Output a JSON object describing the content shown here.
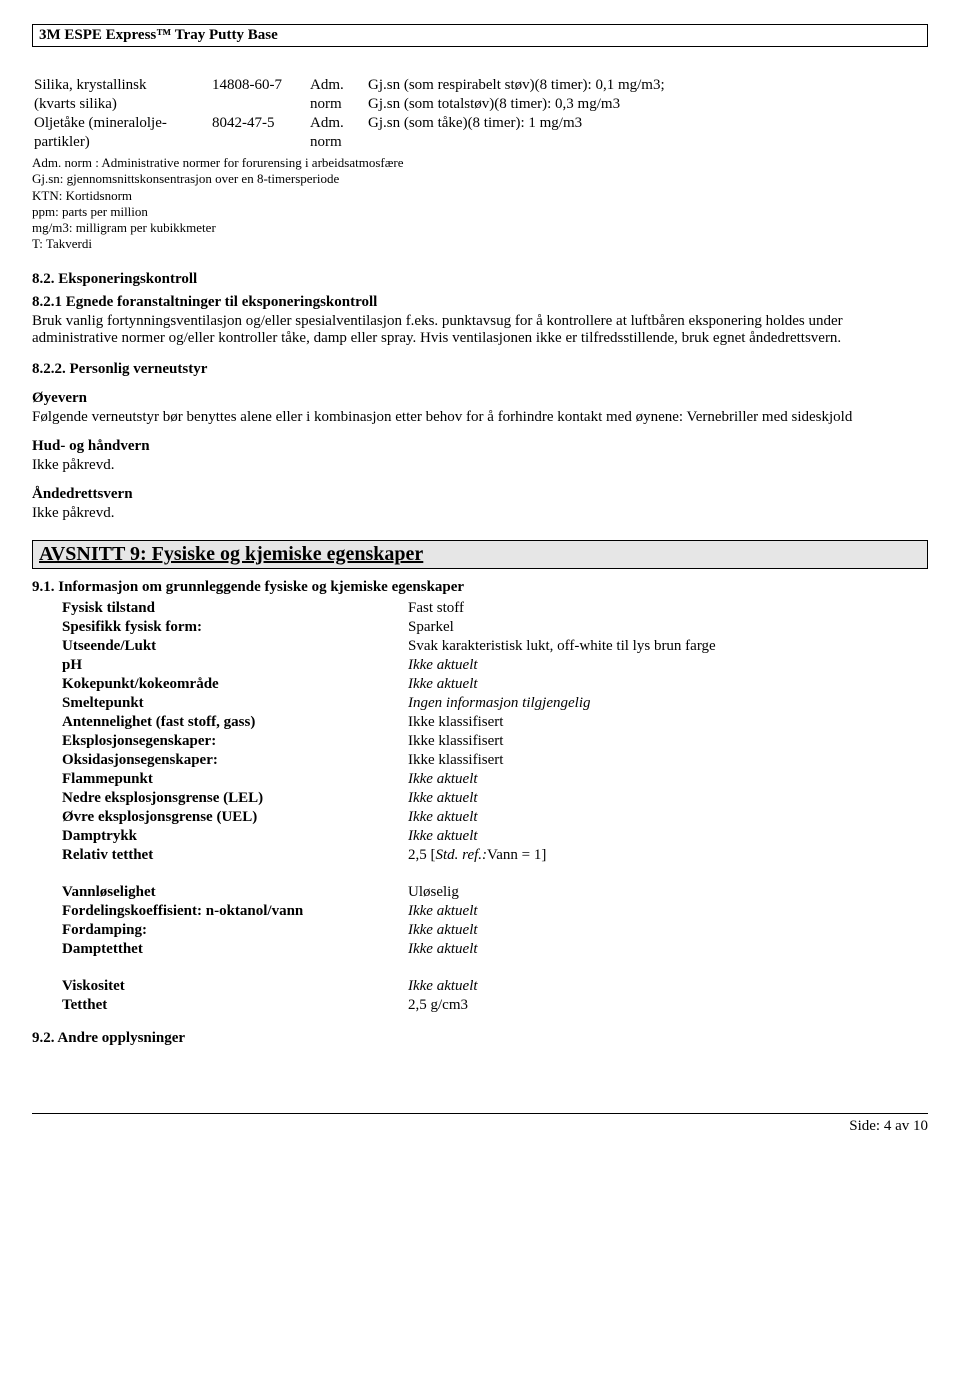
{
  "header": {
    "title": "3M ESPE Express™ Tray Putty Base"
  },
  "exposure_rows": [
    {
      "name_l1": "Silika, krystallinsk",
      "name_l2": "(kvarts silika)",
      "cas": "14808-60-7",
      "norm_l1": "Adm.",
      "norm_l2": "norm",
      "val_l1": "Gj.sn (som respirabelt støv)(8 timer): 0,1 mg/m3;",
      "val_l2": "Gj.sn (som totalstøv)(8 timer): 0,3 mg/m3"
    },
    {
      "name_l1": "Oljetåke (mineralolje-",
      "name_l2": "partikler)",
      "cas": "8042-47-5",
      "norm_l1": "Adm.",
      "norm_l2": "norm",
      "val_l1": "Gj.sn (som tåke)(8 timer): 1 mg/m3",
      "val_l2": ""
    }
  ],
  "defs": [
    "Adm. norm : Administrative normer for forurensing i arbeidsatmosfære",
    "Gj.sn: gjennomsnittskonsentrasjon over en 8-timersperiode",
    "KTN: Kortidsnorm",
    "ppm: parts per million",
    "mg/m3: milligram per kubikkmeter",
    "T: Takverdi"
  ],
  "s82": {
    "title": "8.2. Eksponeringskontroll",
    "s821_title": "8.2.1 Egnede foranstaltninger til eksponeringskontroll",
    "s821_body": "Bruk vanlig fortynningsventilasjon og/eller spesialventilasjon f.eks. punktavsug for å kontrollere at luftbåren eksponering holdes under administrative normer og/eller kontroller tåke, damp eller spray. Hvis ventilasjonen ikke er tilfredsstillende, bruk egnet åndedrettsvern.",
    "s822_title": "8.2.2. Personlig verneutstyr",
    "eye_h": "Øyevern",
    "eye_body": "Følgende verneutstyr bør benyttes alene eller i kombinasjon etter behov for å forhindre kontakt med øynene: Vernebriller med sideskjold",
    "skin_h": "Hud- og håndvern",
    "skin_body": "Ikke påkrevd.",
    "resp_h": "Åndedrettsvern",
    "resp_body": "Ikke påkrevd."
  },
  "section9": {
    "banner": "AVSNITT 9: Fysiske og kjemiske egenskaper",
    "s91_title": "9.1. Informasjon om grunnleggende fysiske og kjemiske egenskaper",
    "group1": [
      {
        "label": "Fysisk tilstand",
        "value": "Fast stoff",
        "italic": false
      },
      {
        "label": "Spesifikk fysisk form:",
        "value": "Sparkel",
        "italic": false
      },
      {
        "label": "Utseende/Lukt",
        "value": "Svak karakteristisk lukt, off-white til lys brun farge",
        "italic": false
      },
      {
        "label": "pH",
        "value": "Ikke aktuelt",
        "italic": true
      },
      {
        "label": "Kokepunkt/kokeområde",
        "value": "Ikke aktuelt",
        "italic": true
      },
      {
        "label": "Smeltepunkt",
        "value": "Ingen informasjon tilgjengelig",
        "italic": true
      },
      {
        "label": "Antennelighet (fast stoff, gass)",
        "value": "Ikke klassifisert",
        "italic": false
      },
      {
        "label": "Eksplosjonsegenskaper:",
        "value": "Ikke klassifisert",
        "italic": false
      },
      {
        "label": "Oksidasjonsegenskaper:",
        "value": "Ikke klassifisert",
        "italic": false
      },
      {
        "label": "Flammepunkt",
        "value": "Ikke aktuelt",
        "italic": true
      },
      {
        "label": "Nedre eksplosjonsgrense (LEL)",
        "value": "Ikke aktuelt",
        "italic": true
      },
      {
        "label": "Øvre eksplosjonsgrense (UEL)",
        "value": "Ikke aktuelt",
        "italic": true
      },
      {
        "label": "Damptrykk",
        "value": "Ikke aktuelt",
        "italic": true
      }
    ],
    "rel_density_label": "Relativ tetthet",
    "rel_density_val": "2,5  [",
    "rel_density_ref": "Std. ref.:",
    "rel_density_tail": "Vann = 1]",
    "group2": [
      {
        "label": "Vannløselighet",
        "value": "Uløselig",
        "italic": false
      },
      {
        "label": "Fordelingskoeffisient: n-oktanol/vann",
        "value": "Ikke aktuelt",
        "italic": true
      },
      {
        "label": "Fordamping:",
        "value": "Ikke aktuelt",
        "italic": true
      },
      {
        "label": "Damptetthet",
        "value": "Ikke aktuelt",
        "italic": true
      }
    ],
    "group3": [
      {
        "label": "Viskositet",
        "value": "Ikke aktuelt",
        "italic": true
      },
      {
        "label": "Tetthet",
        "value": "2,5 g/cm3",
        "italic": false
      }
    ],
    "s92_title": "9.2. Andre opplysninger"
  },
  "footer": {
    "page": "Side: 4 av  10"
  }
}
